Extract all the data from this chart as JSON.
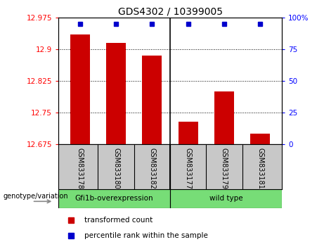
{
  "title": "GDS4302 / 10399005",
  "samples": [
    "GSM833178",
    "GSM833180",
    "GSM833182",
    "GSM833177",
    "GSM833179",
    "GSM833181"
  ],
  "bar_values": [
    12.935,
    12.915,
    12.885,
    12.728,
    12.8,
    12.7
  ],
  "bar_color": "#cc0000",
  "dot_color": "#0000cc",
  "ylim_left": [
    12.675,
    12.975
  ],
  "yticks_left": [
    12.675,
    12.75,
    12.825,
    12.9,
    12.975
  ],
  "yticks_right": [
    0,
    25,
    50,
    75,
    100
  ],
  "ylim_right": [
    0,
    100
  ],
  "group1_label": "Gfi1b-overexpression",
  "group2_label": "wild type",
  "group1_color": "#77dd77",
  "group2_color": "#77dd77",
  "sample_bg_color": "#c8c8c8",
  "legend_red_label": "transformed count",
  "legend_blue_label": "percentile rank within the sample",
  "bar_width": 0.55,
  "genotype_label": "genotype/variation"
}
